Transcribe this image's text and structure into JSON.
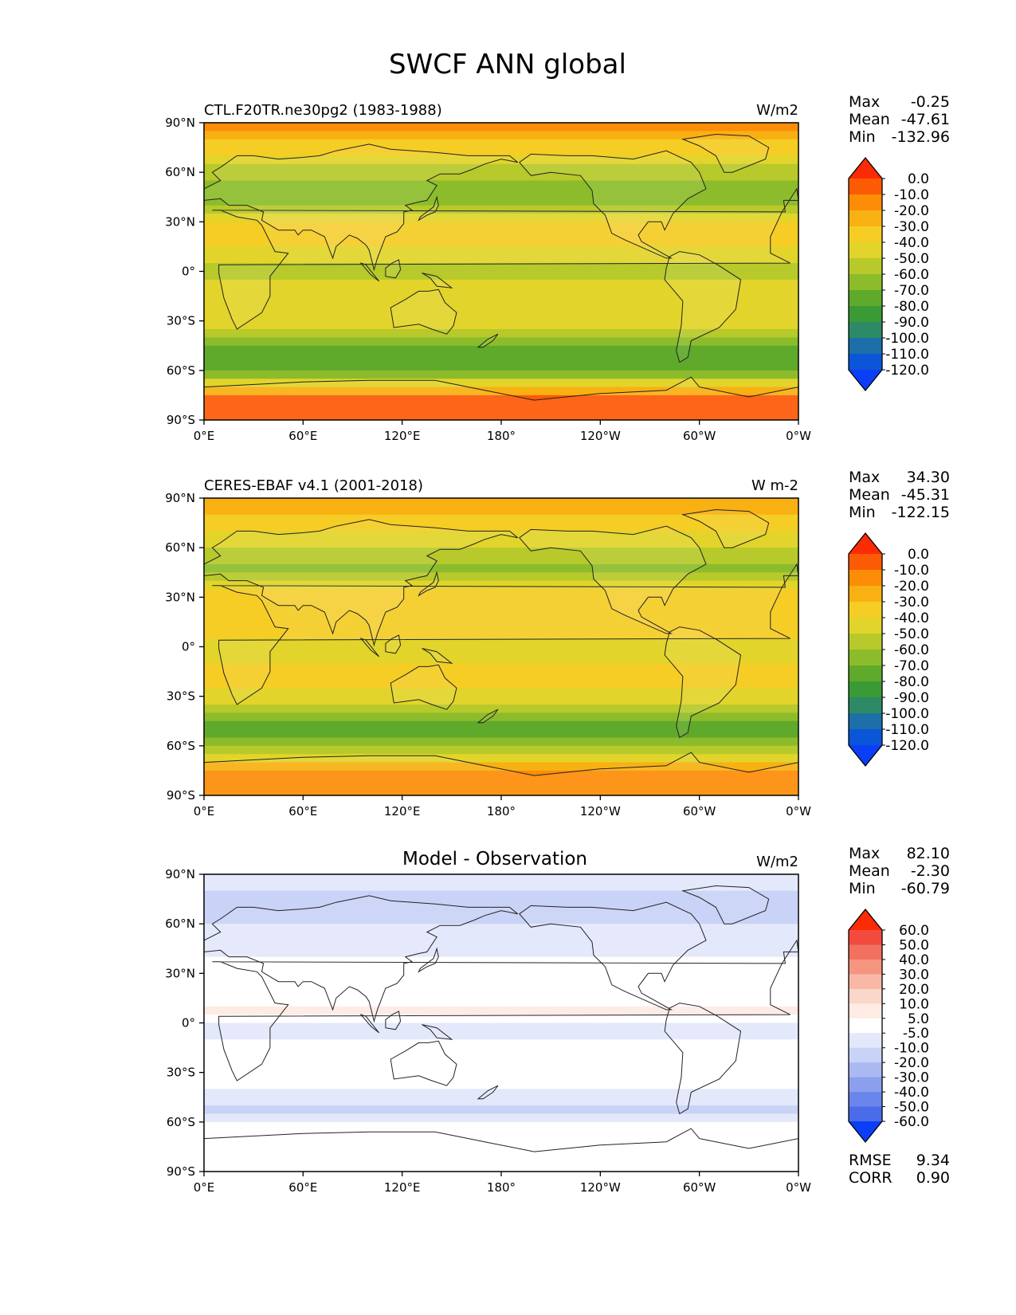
{
  "figure_title": "SWCF ANN global",
  "chart_data": [
    {
      "type": "heatmap",
      "title": "CTL.F20TR.ne30pg2 (1983-1988)",
      "units": "W/m2",
      "stats": {
        "Max": "-0.25",
        "Mean": "-47.61",
        "Min": "-132.96"
      },
      "colorbar": {
        "levels": [
          "0.0",
          "-10.0",
          "-20.0",
          "-30.0",
          "-40.0",
          "-50.0",
          "-60.0",
          "-70.0",
          "-80.0",
          "-90.0",
          "-100.0",
          "-110.0",
          "-120.0"
        ],
        "colors": [
          "#fb2c05",
          "#fd5a05",
          "#fd8d07",
          "#f9b012",
          "#f5cd24",
          "#e2d42a",
          "#b7c92b",
          "#8cbc2b",
          "#5fa92b",
          "#3a9a35",
          "#2d8a66",
          "#1c6fa8",
          "#0a55d8",
          "#0b3ef7"
        ]
      },
      "x_ticks": [
        "0°E",
        "60°E",
        "120°E",
        "180°",
        "120°W",
        "60°W",
        "0°W"
      ],
      "y_ticks": [
        "90°N",
        "60°N",
        "30°N",
        "0°",
        "30°S",
        "60°S",
        "90°S"
      ],
      "xlim": [
        0,
        360
      ],
      "ylim": [
        -90,
        90
      ],
      "field_profile": [
        {
          "lat": 90,
          "value": -15
        },
        {
          "lat": 75,
          "value": -35
        },
        {
          "lat": 60,
          "value": -55
        },
        {
          "lat": 45,
          "value": -68
        },
        {
          "lat": 30,
          "value": -38
        },
        {
          "lat": 15,
          "value": -40
        },
        {
          "lat": 0,
          "value": -55
        },
        {
          "lat": -15,
          "value": -42
        },
        {
          "lat": -30,
          "value": -45
        },
        {
          "lat": -45,
          "value": -75
        },
        {
          "lat": -55,
          "value": -78
        },
        {
          "lat": -65,
          "value": -55
        },
        {
          "lat": -75,
          "value": -10
        },
        {
          "lat": -90,
          "value": -10
        }
      ]
    },
    {
      "type": "heatmap",
      "title": "CERES-EBAF v4.1 (2001-2018)",
      "units": "W m-2",
      "stats": {
        "Max": "34.30",
        "Mean": "-45.31",
        "Min": "-122.15"
      },
      "colorbar": {
        "levels": [
          "0.0",
          "-10.0",
          "-20.0",
          "-30.0",
          "-40.0",
          "-50.0",
          "-60.0",
          "-70.0",
          "-80.0",
          "-90.0",
          "-100.0",
          "-110.0",
          "-120.0"
        ],
        "colors": [
          "#fb2c05",
          "#fd5a05",
          "#fd8d07",
          "#f9b012",
          "#f5cd24",
          "#e2d42a",
          "#b7c92b",
          "#8cbc2b",
          "#5fa92b",
          "#3a9a35",
          "#2d8a66",
          "#1c6fa8",
          "#0a55d8",
          "#0b3ef7"
        ]
      },
      "x_ticks": [
        "0°E",
        "60°E",
        "120°E",
        "180°",
        "120°W",
        "60°W",
        "0°W"
      ],
      "y_ticks": [
        "90°N",
        "60°N",
        "30°N",
        "0°",
        "30°S",
        "60°S",
        "90°S"
      ],
      "xlim": [
        0,
        360
      ],
      "ylim": [
        -90,
        90
      ],
      "field_profile": [
        {
          "lat": 90,
          "value": -18
        },
        {
          "lat": 75,
          "value": -35
        },
        {
          "lat": 60,
          "value": -52
        },
        {
          "lat": 45,
          "value": -62
        },
        {
          "lat": 30,
          "value": -35
        },
        {
          "lat": 15,
          "value": -32
        },
        {
          "lat": 0,
          "value": -48
        },
        {
          "lat": -15,
          "value": -35
        },
        {
          "lat": -30,
          "value": -42
        },
        {
          "lat": -45,
          "value": -70
        },
        {
          "lat": -55,
          "value": -72
        },
        {
          "lat": -65,
          "value": -50
        },
        {
          "lat": -75,
          "value": -12
        },
        {
          "lat": -90,
          "value": -12
        }
      ]
    },
    {
      "type": "heatmap",
      "title": "Model - Observation",
      "units": "W/m2",
      "stats": {
        "Max": "82.10",
        "Mean": "-2.30",
        "Min": "-60.79"
      },
      "extra_stats": {
        "RMSE": "9.34",
        "CORR": "0.90"
      },
      "colorbar": {
        "levels": [
          "60.0",
          "50.0",
          "40.0",
          "30.0",
          "20.0",
          "10.0",
          "5.0",
          "-5.0",
          "-10.0",
          "-20.0",
          "-30.0",
          "-40.0",
          "-50.0",
          "-60.0"
        ],
        "colors": [
          "#fb2c05",
          "#f24b3e",
          "#f2705f",
          "#f5957f",
          "#f8b8a5",
          "#fbd6ca",
          "#fdebe4",
          "#ffffff",
          "#e3e8fb",
          "#c9d3f7",
          "#aab9f2",
          "#8aa0ee",
          "#6a86ea",
          "#4a6ce8",
          "#0b3ef7"
        ]
      },
      "x_ticks": [
        "0°E",
        "60°E",
        "120°E",
        "180°",
        "120°W",
        "60°W",
        "0°W"
      ],
      "y_ticks": [
        "90°N",
        "60°N",
        "30°N",
        "0°",
        "30°S",
        "60°S",
        "90°S"
      ],
      "xlim": [
        0,
        360
      ],
      "ylim": [
        -90,
        90
      ],
      "field_profile": [
        {
          "lat": 90,
          "value": -8
        },
        {
          "lat": 75,
          "value": -12
        },
        {
          "lat": 60,
          "value": -10
        },
        {
          "lat": 45,
          "value": -8
        },
        {
          "lat": 30,
          "value": 3
        },
        {
          "lat": 15,
          "value": -2
        },
        {
          "lat": 5,
          "value": 8
        },
        {
          "lat": 0,
          "value": -8
        },
        {
          "lat": -15,
          "value": -3
        },
        {
          "lat": -30,
          "value": 6
        },
        {
          "lat": -45,
          "value": -8
        },
        {
          "lat": -55,
          "value": -12
        },
        {
          "lat": -65,
          "value": 6
        },
        {
          "lat": -75,
          "value": 0
        },
        {
          "lat": -90,
          "value": 0
        }
      ]
    }
  ]
}
